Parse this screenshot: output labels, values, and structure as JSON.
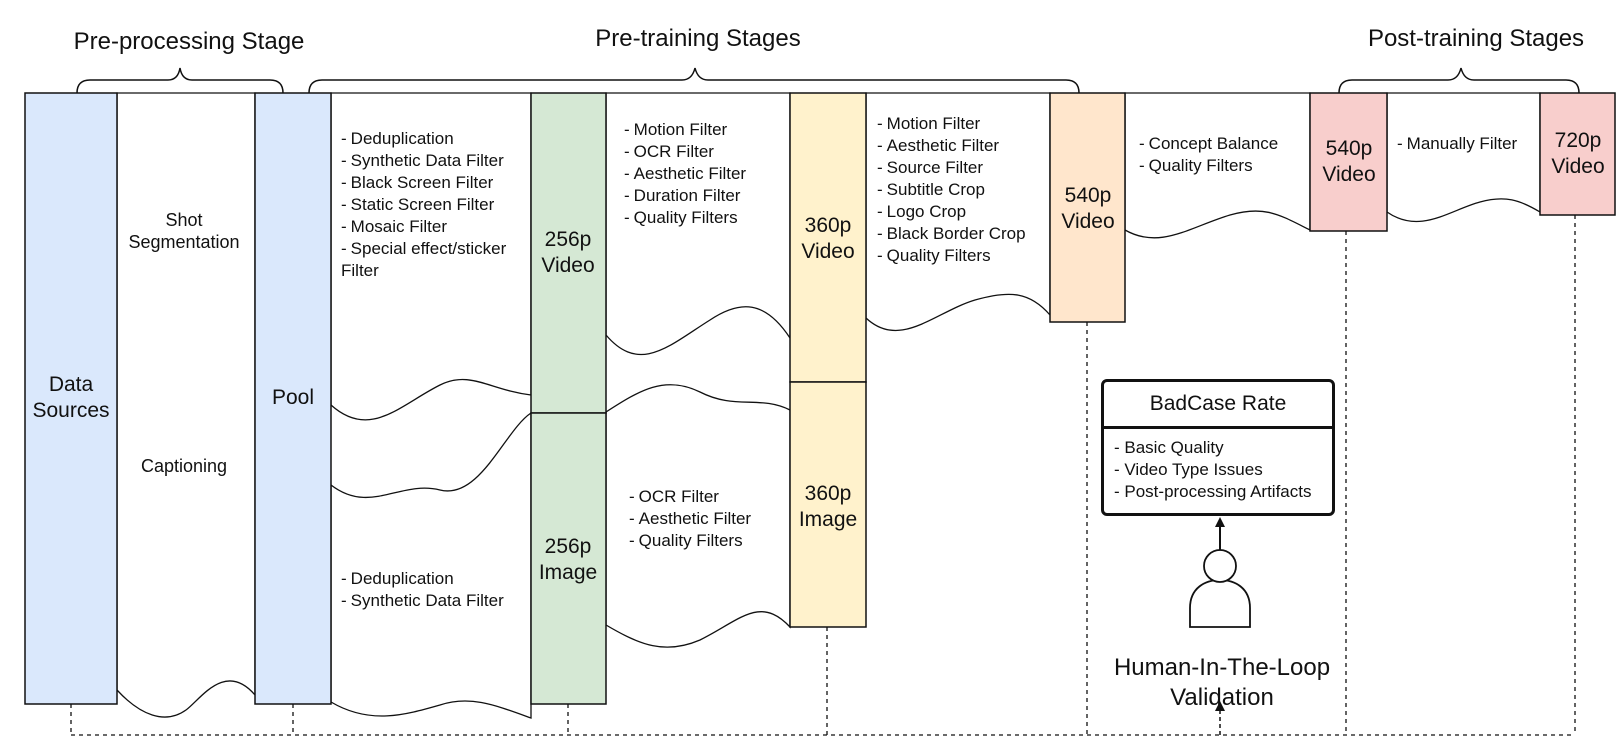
{
  "stages": {
    "preprocessing": "Pre-processing Stage",
    "pretraining": "Pre-training Stages",
    "posttraining": "Post-training Stages"
  },
  "boxes": {
    "data_sources": [
      "Data",
      "Sources"
    ],
    "pool": "Pool",
    "video_256": [
      "256p",
      "Video"
    ],
    "image_256": [
      "256p",
      "Image"
    ],
    "video_360": [
      "360p",
      "Video"
    ],
    "image_360": [
      "360p",
      "Image"
    ],
    "video_540a": [
      "540p",
      "Video"
    ],
    "video_540b": [
      "540p",
      "Video"
    ],
    "video_720": [
      "720p",
      "Video"
    ]
  },
  "preprocess_steps": {
    "shot": [
      "Shot",
      "Segmentation"
    ],
    "captioning": "Captioning"
  },
  "filters": {
    "pool_to_256v": [
      "Deduplication",
      "Synthetic Data Filter",
      "Black Screen Filter",
      "Static Screen Filter",
      "Mosaic Filter",
      "Special effect/sticker",
      "Filter"
    ],
    "pool_to_256i": [
      "Deduplication",
      "Synthetic Data Filter"
    ],
    "v256_to_v360": [
      "Motion Filter",
      "OCR Filter",
      "Aesthetic Filter",
      "Duration Filter",
      "Quality Filters"
    ],
    "i256_to_i360": [
      "OCR Filter",
      "Aesthetic Filter",
      "Quality Filters"
    ],
    "v360_to_v540": [
      "Motion Filter",
      "Aesthetic Filter",
      "Source Filter",
      "Subtitle Crop",
      "Logo Crop",
      "Black Border Crop",
      "Quality Filters"
    ],
    "v540_to_v540": [
      "Concept Balance",
      "Quality Filters"
    ],
    "v540_to_v720": [
      "Manually Filter"
    ]
  },
  "badcase": {
    "title": "BadCase Rate",
    "items": [
      "Basic Quality",
      "Video Type Issues",
      "Post-processing Artifacts"
    ]
  },
  "human_loop": [
    "Human-In-The-Loop",
    "Validation"
  ],
  "colors": {
    "blue": "#dae8fc",
    "green": "#d5e8d4",
    "yellow": "#fff2cc",
    "orange": "#ffe6cc",
    "red": "#f8cecc",
    "stroke": "#111111"
  },
  "icons": {
    "person": "person-icon",
    "braces": "brace-icon"
  }
}
